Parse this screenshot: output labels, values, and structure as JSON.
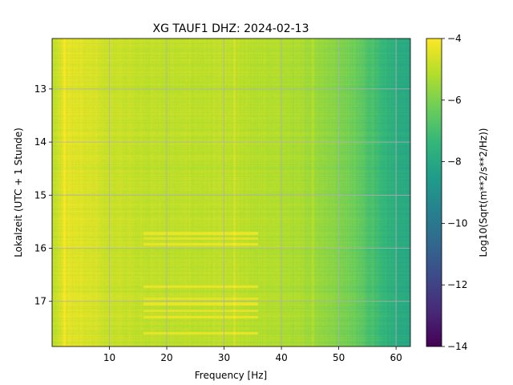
{
  "chart_data": {
    "type": "heatmap",
    "title": "XG TAUF1  DHZ: 2024-02-13",
    "xlabel": "Frequency [Hz]",
    "ylabel": "Lokalzeit (UTC + 1 Stunde)",
    "xlim": [
      0,
      62.5
    ],
    "ylim": [
      12.05,
      17.85
    ],
    "y_inverted": true,
    "xticks": [
      10,
      20,
      30,
      40,
      50,
      60
    ],
    "yticks": [
      13,
      14,
      15,
      16,
      17
    ],
    "grid": true,
    "colormap": "viridis",
    "colorbar": {
      "label": "Log10(Sqrt(m**2/s**2/Hz))",
      "range": [
        -14,
        -4
      ],
      "ticks": [
        -4,
        -6,
        -8,
        -10,
        -12,
        -14
      ],
      "tick_labels": [
        "−4",
        "−6",
        "−8",
        "−10",
        "−12",
        "−14"
      ]
    },
    "spectrum_profile": {
      "frequency_hz": [
        0.5,
        2,
        5,
        10,
        15,
        20,
        25,
        30,
        35,
        40,
        45,
        50,
        53,
        55,
        57,
        59,
        60,
        62.5
      ],
      "log10_amplitude": [
        -4.9,
        -4.4,
        -4.5,
        -4.8,
        -4.9,
        -5.0,
        -5.0,
        -5.0,
        -5.1,
        -5.2,
        -5.4,
        -5.9,
        -6.3,
        -6.8,
        -7.2,
        -7.6,
        -7.8,
        -8.0
      ]
    },
    "bright_bands": [
      {
        "time": 15.72,
        "f_start": 16,
        "f_end": 36,
        "value": -4.3
      },
      {
        "time": 15.82,
        "f_start": 16,
        "f_end": 36,
        "value": -4.4
      },
      {
        "time": 15.92,
        "f_start": 16,
        "f_end": 36,
        "value": -4.3
      },
      {
        "time": 16.72,
        "f_start": 16,
        "f_end": 36,
        "value": -4.3
      },
      {
        "time": 16.95,
        "f_start": 16,
        "f_end": 36,
        "value": -4.4
      },
      {
        "time": 17.05,
        "f_start": 16,
        "f_end": 36,
        "value": -4.3
      },
      {
        "time": 17.18,
        "f_start": 16,
        "f_end": 36,
        "value": -4.4
      },
      {
        "time": 17.3,
        "f_start": 16,
        "f_end": 36,
        "value": -4.3
      },
      {
        "time": 17.6,
        "f_start": 16,
        "f_end": 36,
        "value": -4.3
      }
    ],
    "spectral_lines_hz": [
      2.2,
      31.8,
      45.5,
      56.0
    ]
  },
  "colors": {
    "grid": "#b0b0b0",
    "axes": "#000000",
    "viridis": [
      "#440154",
      "#482878",
      "#3e4989",
      "#31688e",
      "#26828e",
      "#1f9e89",
      "#35b779",
      "#6ece58",
      "#b5de2b",
      "#fde725"
    ]
  }
}
